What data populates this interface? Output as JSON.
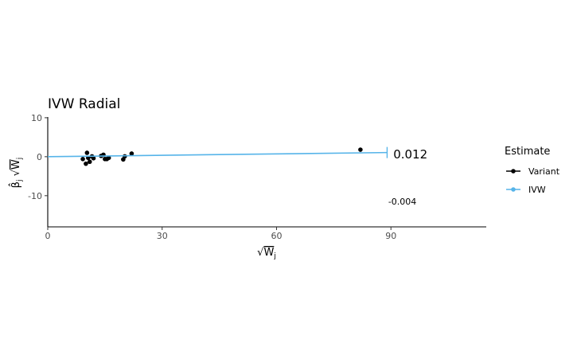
{
  "chart_data": {
    "type": "scatter",
    "title": "IVW Radial",
    "xlabel": "Wj",
    "ylabel": "βj Wj",
    "xlim": [
      0,
      115
    ],
    "ylim": [
      -18,
      11
    ],
    "x_ticks": [
      0,
      30,
      60,
      90
    ],
    "y_ticks": [
      -10,
      0,
      10
    ],
    "grid": false,
    "legend_title": "Estimate",
    "legend_position": "right",
    "legend_entries": [
      {
        "label": "Variant",
        "color": "#000000"
      },
      {
        "label": "IVW",
        "color": "#56B4E9"
      }
    ],
    "series": [
      {
        "name": "Variant",
        "color": "#000000",
        "points": [
          {
            "x": 9.2,
            "y": -0.6
          },
          {
            "x": 10.0,
            "y": -1.8
          },
          {
            "x": 10.3,
            "y": 1.0
          },
          {
            "x": 10.6,
            "y": -0.3
          },
          {
            "x": 11.0,
            "y": -1.3
          },
          {
            "x": 11.6,
            "y": 0.1
          },
          {
            "x": 12.0,
            "y": -0.4
          },
          {
            "x": 14.0,
            "y": 0.2
          },
          {
            "x": 14.6,
            "y": 0.5
          },
          {
            "x": 15.0,
            "y": -0.6
          },
          {
            "x": 15.5,
            "y": -0.6
          },
          {
            "x": 16.0,
            "y": -0.3
          },
          {
            "x": 19.8,
            "y": -0.7
          },
          {
            "x": 20.2,
            "y": 0.1
          },
          {
            "x": 22.0,
            "y": 0.8
          },
          {
            "x": 82.0,
            "y": 1.8
          }
        ]
      },
      {
        "name": "IVW",
        "color": "#56B4E9",
        "line": {
          "intercept": 0,
          "slope": 0.012,
          "x_end": 89
        }
      }
    ],
    "annotations": [
      {
        "text": "0.012",
        "x": 90,
        "y": 0.8
      },
      {
        "text": "-0.004",
        "x": 89.5,
        "y": -11.5
      }
    ]
  }
}
